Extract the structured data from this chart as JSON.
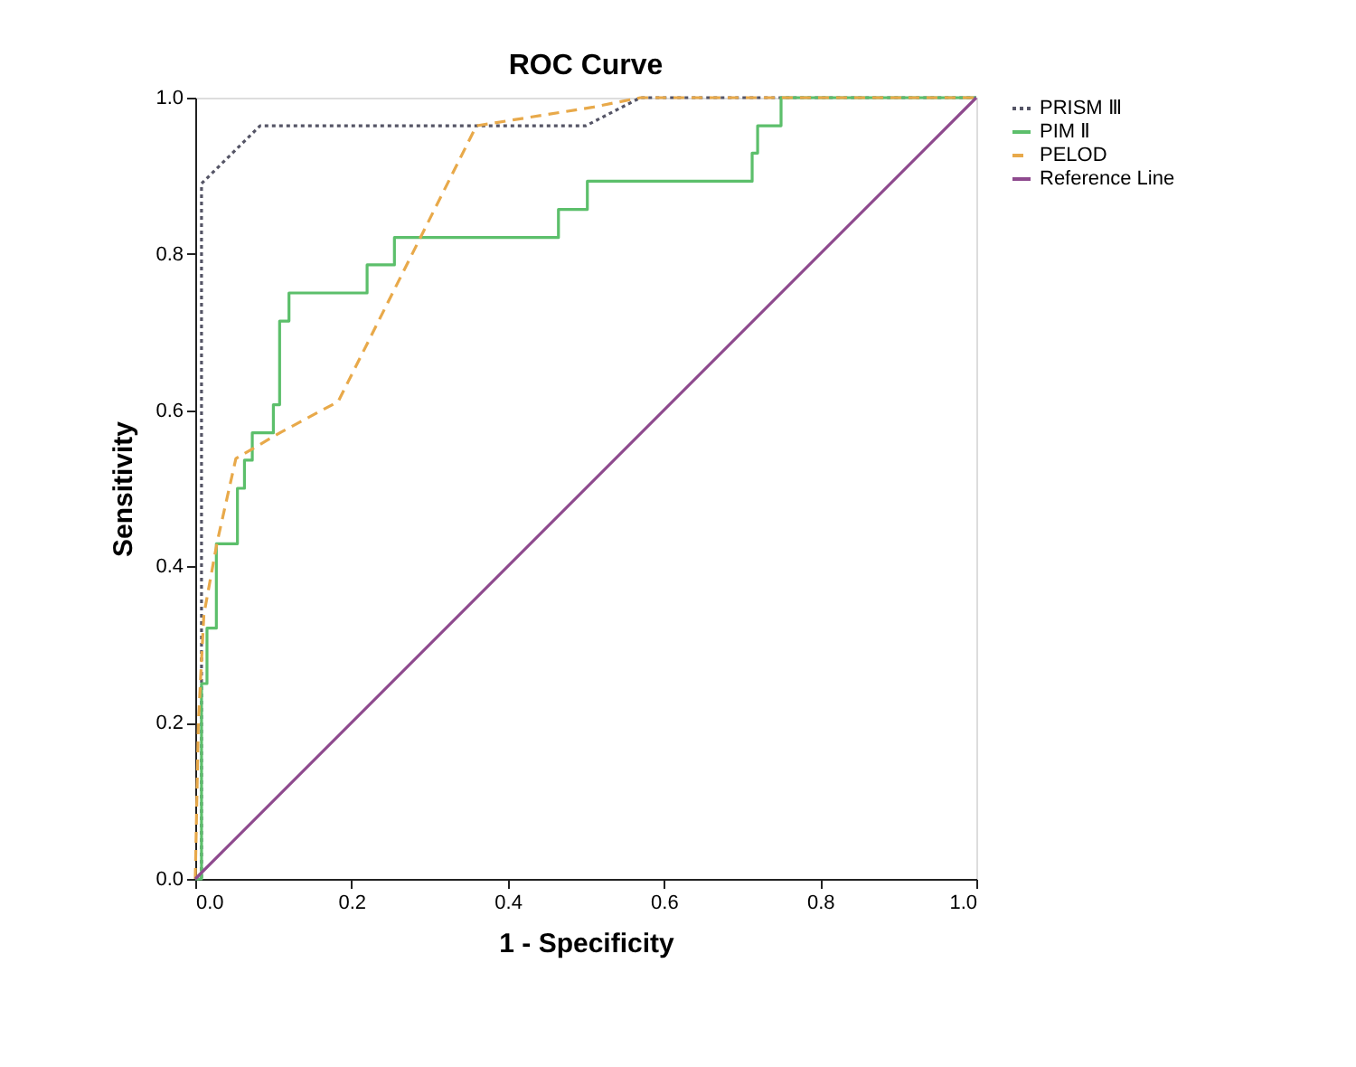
{
  "chart_data": {
    "type": "line",
    "title": "ROC Curve",
    "xlabel": "1 - Specificity",
    "ylabel": "Sensitivity",
    "xlim": [
      0,
      1
    ],
    "ylim": [
      0,
      1
    ],
    "xticks": [
      {
        "value": 0,
        "label": "0.0"
      },
      0.2,
      0.4,
      0.6,
      0.8,
      {
        "value": 1,
        "label": "1.0"
      }
    ],
    "yticks": [
      {
        "value": 0,
        "label": "0.0"
      },
      0.2,
      0.4,
      0.6,
      0.8,
      {
        "value": 1,
        "label": "1.0"
      }
    ],
    "grid": false,
    "legend": "right",
    "marker": "none",
    "series": [
      {
        "name": "PRISM Ⅲ",
        "color": "#555566",
        "line_style": "dotted",
        "x": [
          0,
          0.008,
          0.008,
          0.083,
          0.5,
          0.57,
          1
        ],
        "values": [
          0,
          0,
          0.89,
          0.964,
          0.964,
          1,
          1
        ]
      },
      {
        "name": "PIM Ⅱ",
        "color": "#5cbf6b",
        "line_style": "solid",
        "x": [
          0,
          0.008,
          0.008,
          0.015,
          0.015,
          0.027,
          0.027,
          0.054,
          0.054,
          0.063,
          0.063,
          0.073,
          0.073,
          0.1,
          0.1,
          0.108,
          0.108,
          0.12,
          0.12,
          0.22,
          0.22,
          0.255,
          0.255,
          0.465,
          0.465,
          0.502,
          0.502,
          0.713,
          0.713,
          0.72,
          0.72,
          0.75,
          0.75,
          1
        ],
        "values": [
          0,
          0,
          0.25,
          0.25,
          0.321,
          0.321,
          0.429,
          0.429,
          0.5,
          0.5,
          0.536,
          0.536,
          0.571,
          0.571,
          0.607,
          0.607,
          0.714,
          0.714,
          0.75,
          0.75,
          0.786,
          0.786,
          0.821,
          0.821,
          0.857,
          0.857,
          0.893,
          0.893,
          0.929,
          0.929,
          0.964,
          0.964,
          1,
          1
        ]
      },
      {
        "name": "PELOD",
        "color": "#e8a94a",
        "line_style": "dashed",
        "x": [
          0,
          0.004,
          0.011,
          0.028,
          0.052,
          0.11,
          0.183,
          0.36,
          0.51,
          0.57,
          1
        ],
        "values": [
          0,
          0.2,
          0.338,
          0.431,
          0.538,
          0.572,
          0.611,
          0.964,
          0.988,
          1,
          1
        ]
      },
      {
        "name": "Reference Line",
        "color": "#8e4a8e",
        "line_style": "solid",
        "x": [
          0,
          1
        ],
        "values": [
          0,
          1
        ]
      }
    ]
  }
}
